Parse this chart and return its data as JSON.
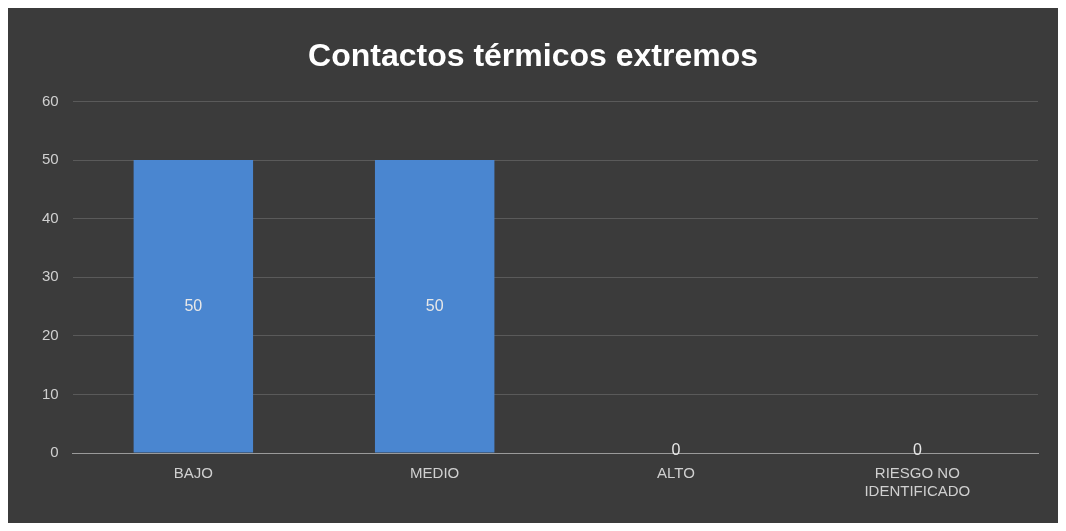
{
  "chart_data": {
    "type": "bar",
    "title": "Contactos térmicos extremos",
    "categories": [
      "BAJO",
      "MEDIO",
      "ALTO",
      "RIESGO NO IDENTIFICADO"
    ],
    "values": [
      50,
      50,
      0,
      0
    ],
    "color": "#4a86d0",
    "ylim": [
      0,
      60
    ],
    "yticks": [
      0,
      10,
      20,
      30,
      40,
      50,
      60
    ],
    "grid": "y",
    "data_labels": true,
    "legend": false
  }
}
